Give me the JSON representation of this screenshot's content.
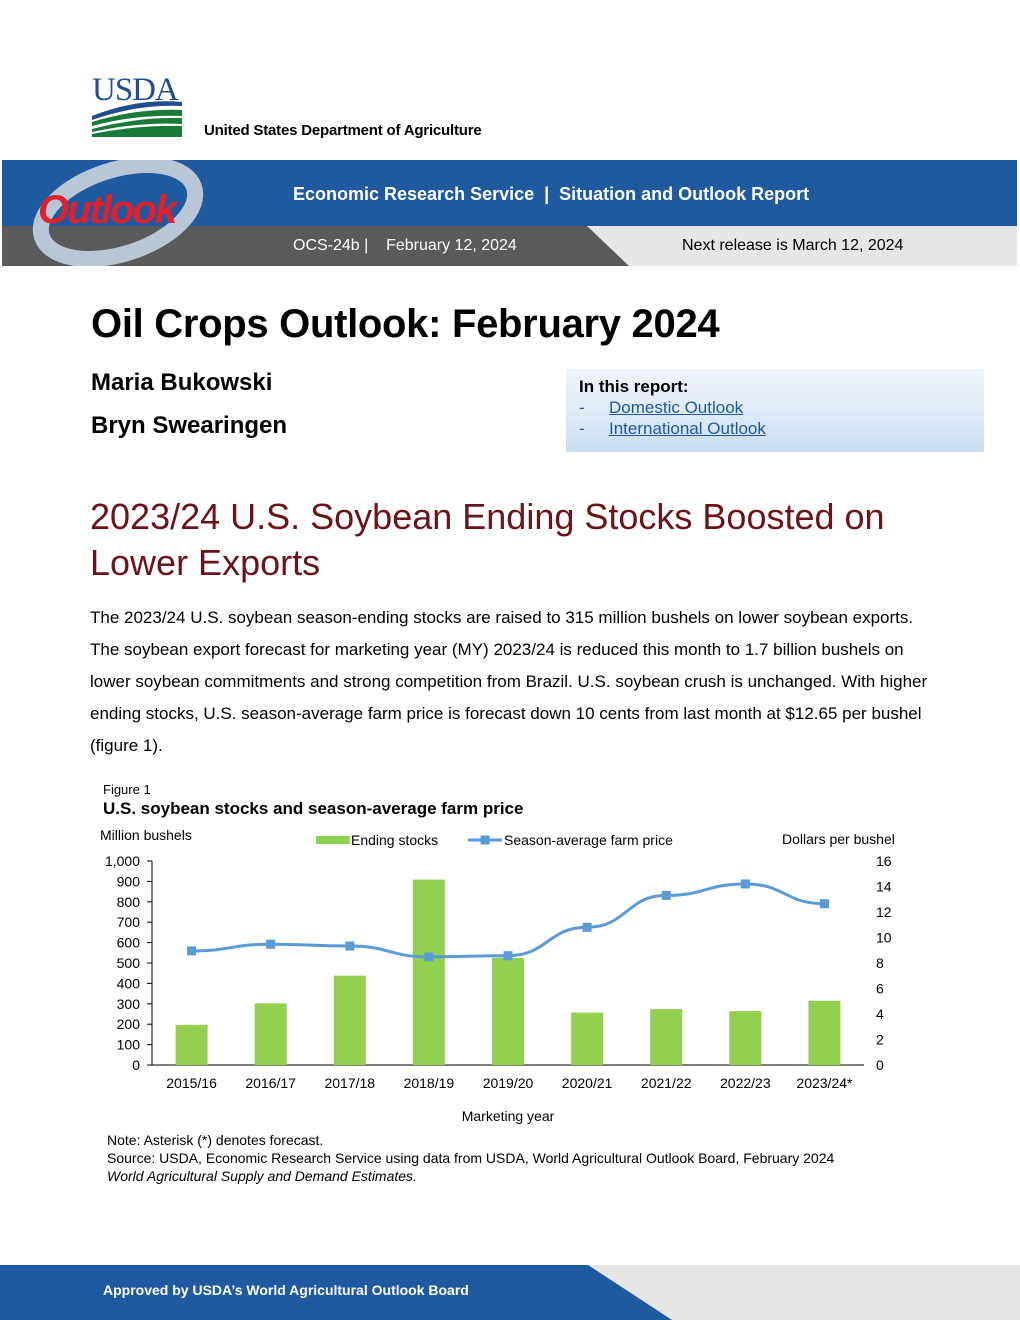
{
  "header": {
    "logo_text": "USDA",
    "department": "United States Department of Agriculture",
    "outlook_logo_text": "Outlook",
    "banner_title": "Economic Research Service  |  Situation and Outlook Report",
    "issue": "OCS-24b |    February 12, 2024",
    "next_release": "Next release is March 12, 2024",
    "colors": {
      "brand_blue": "#1f5aa0",
      "gray": "#5a5a5a",
      "outlook_red": "#e0202a"
    }
  },
  "report": {
    "title": "Oil Crops Outlook: February 2024",
    "authors": [
      "Maria Bukowski",
      "Bryn Swearingen"
    ],
    "in_this_report": {
      "heading": "In this report:",
      "dash": "-",
      "links": [
        "Domestic Outlook",
        "International Outlook"
      ]
    },
    "section_heading": "2023/24 U.S. Soybean Ending Stocks Boosted on Lower Exports",
    "body": "The 2023/24 U.S. soybean season-ending stocks are raised to 315 million bushels on lower soybean exports. The soybean export forecast for marketing year (MY) 2023/24 is reduced this month to 1.7 billion bushels on lower soybean commitments and strong competition from Brazil. U.S. soybean crush is unchanged. With higher ending stocks, U.S. season-average farm price is forecast down 10 cents from last month at $12.65 per bushel (figure 1)."
  },
  "figure": {
    "label": "Figure 1",
    "note": "Note: Asterisk (*) denotes forecast.",
    "source": "Source: USDA, Economic Research Service using data from USDA, World Agricultural Outlook Board, February 2024",
    "source_italic": "World Agricultural Supply and Demand Estimates."
  },
  "chart_data": {
    "type": "bar",
    "title": "U.S. soybean stocks and season-average farm price",
    "xlabel": "Marketing year",
    "ylabel_left": "Million bushels",
    "ylabel_right": "Dollars per bushel",
    "categories": [
      "2015/16",
      "2016/17",
      "2017/18",
      "2018/19",
      "2019/20",
      "2020/21",
      "2021/22",
      "2022/23",
      "2023/24*"
    ],
    "series": [
      {
        "name": "Ending stocks",
        "type": "bar",
        "axis": "left",
        "color": "#92d050",
        "values": [
          197,
          302,
          438,
          909,
          525,
          257,
          274,
          264,
          315
        ]
      },
      {
        "name": "Season-average farm price",
        "type": "line",
        "axis": "right",
        "color": "#5b9bd5",
        "values": [
          8.95,
          9.47,
          9.33,
          8.48,
          8.57,
          10.8,
          13.3,
          14.2,
          12.65
        ]
      }
    ],
    "ylim_left": [
      0,
      1000
    ],
    "yticks_left": [
      "0",
      "100",
      "200",
      "300",
      "400",
      "500",
      "600",
      "700",
      "800",
      "900",
      "1,000"
    ],
    "ylim_right": [
      0,
      16
    ],
    "yticks_right": [
      "0",
      "2",
      "4",
      "6",
      "8",
      "10",
      "12",
      "14",
      "16"
    ],
    "legend_position": "top-center",
    "grid": false
  },
  "footer": {
    "text": "Approved by USDA’s World Agricultural Outlook Board",
    "colors": {
      "blue": "#1f5aa0",
      "gray": "#e6e6e6"
    }
  }
}
